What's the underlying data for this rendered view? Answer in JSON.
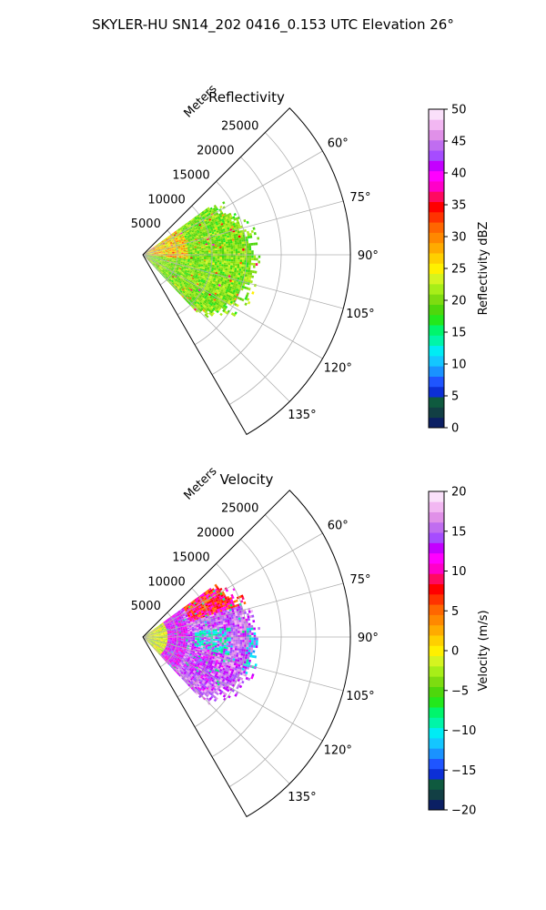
{
  "figure": {
    "title": "SKYLER-HU  SN14_202  0416_0.153 UTC Elevation 26°"
  },
  "chart_data": [
    {
      "type": "heatmap",
      "title": "Reflectivity",
      "radial_label": "Meters",
      "radial_ticks": [
        5000,
        10000,
        15000,
        20000,
        25000
      ],
      "radial_tick_labels": [
        "5000",
        "10000",
        "15000",
        "20000",
        "25000"
      ],
      "rlim": [
        0,
        30000
      ],
      "azimuth_range_deg": [
        45,
        150
      ],
      "azimuth_ticks_deg": [
        60,
        75,
        90,
        105,
        120,
        135
      ],
      "azimuth_tick_labels": [
        "60°",
        "75°",
        "90°",
        "105°",
        "120°",
        "135°"
      ],
      "grid": true,
      "colorbar": {
        "label": "Reflectivity dBZ",
        "vmin": 0,
        "vmax": 50,
        "ticks": [
          0,
          5,
          10,
          15,
          20,
          25,
          30,
          35,
          40,
          45,
          50
        ],
        "tick_labels": [
          "0",
          "5",
          "10",
          "15",
          "20",
          "25",
          "30",
          "35",
          "40",
          "45",
          "50"
        ],
        "colors": [
          "#0b1f63",
          "#123f44",
          "#0f5a3f",
          "#0c2fd6",
          "#1f55ff",
          "#1a92ff",
          "#14c6ff",
          "#00ecf4",
          "#00f5a8",
          "#00f56c",
          "#23e81c",
          "#4ed70c",
          "#7ddc10",
          "#a7ee18",
          "#d5f420",
          "#fff000",
          "#ffd000",
          "#ffab00",
          "#ff8800",
          "#ff6600",
          "#ff3300",
          "#ff0000",
          "#ff0a60",
          "#ff00c8",
          "#ff00ff",
          "#c400ff",
          "#a64cff",
          "#c06df0",
          "#e090e8",
          "#f2b7f2",
          "#fae0fa"
        ]
      },
      "data_region": {
        "az_start": 54,
        "az_end": 137,
        "r_max_m": 17000
      },
      "colors_present": {
        "dominant": "#4dd90a",
        "secondary": "#99e820",
        "hot": "#ffd000",
        "rare": "#ff2020"
      }
    },
    {
      "type": "heatmap",
      "title": "Velocity",
      "radial_label": "Meters",
      "radial_ticks": [
        5000,
        10000,
        15000,
        20000,
        25000
      ],
      "radial_tick_labels": [
        "5000",
        "10000",
        "15000",
        "20000",
        "25000"
      ],
      "rlim": [
        0,
        30000
      ],
      "azimuth_range_deg": [
        45,
        150
      ],
      "azimuth_ticks_deg": [
        60,
        75,
        90,
        105,
        120,
        135
      ],
      "azimuth_tick_labels": [
        "60°",
        "75°",
        "90°",
        "105°",
        "120°",
        "135°"
      ],
      "grid": true,
      "colorbar": {
        "label": "Velocity (m/s)",
        "vmin": -20,
        "vmax": 20,
        "ticks": [
          -20,
          -15,
          -10,
          -5,
          0,
          5,
          10,
          15,
          20
        ],
        "tick_labels": [
          "−20",
          "−15",
          "−10",
          "−5",
          "0",
          "5",
          "10",
          "15",
          "20"
        ],
        "colors": [
          "#0b1f63",
          "#123f44",
          "#0f5a3f",
          "#0c2fd6",
          "#1f55ff",
          "#1a92ff",
          "#14c6ff",
          "#00ecf4",
          "#00f5a8",
          "#00f56c",
          "#23e81c",
          "#4ed70c",
          "#7ddc10",
          "#a7ee18",
          "#d5f420",
          "#fff000",
          "#ffd000",
          "#ffab00",
          "#ff8800",
          "#ff6600",
          "#ff3300",
          "#ff0000",
          "#ff0a60",
          "#ff00c8",
          "#ff00ff",
          "#c400ff",
          "#a64cff",
          "#c06df0",
          "#e090e8",
          "#f2b7f2",
          "#fae0fa"
        ]
      },
      "data_region": {
        "az_start": 54,
        "az_end": 137,
        "r_max_m": 17000
      },
      "colors_present": {
        "near": "#ffe000",
        "ring": "#ff00ff",
        "outer": "#c06df0",
        "north": "#ff2020",
        "core": "#00e0ff"
      }
    }
  ]
}
